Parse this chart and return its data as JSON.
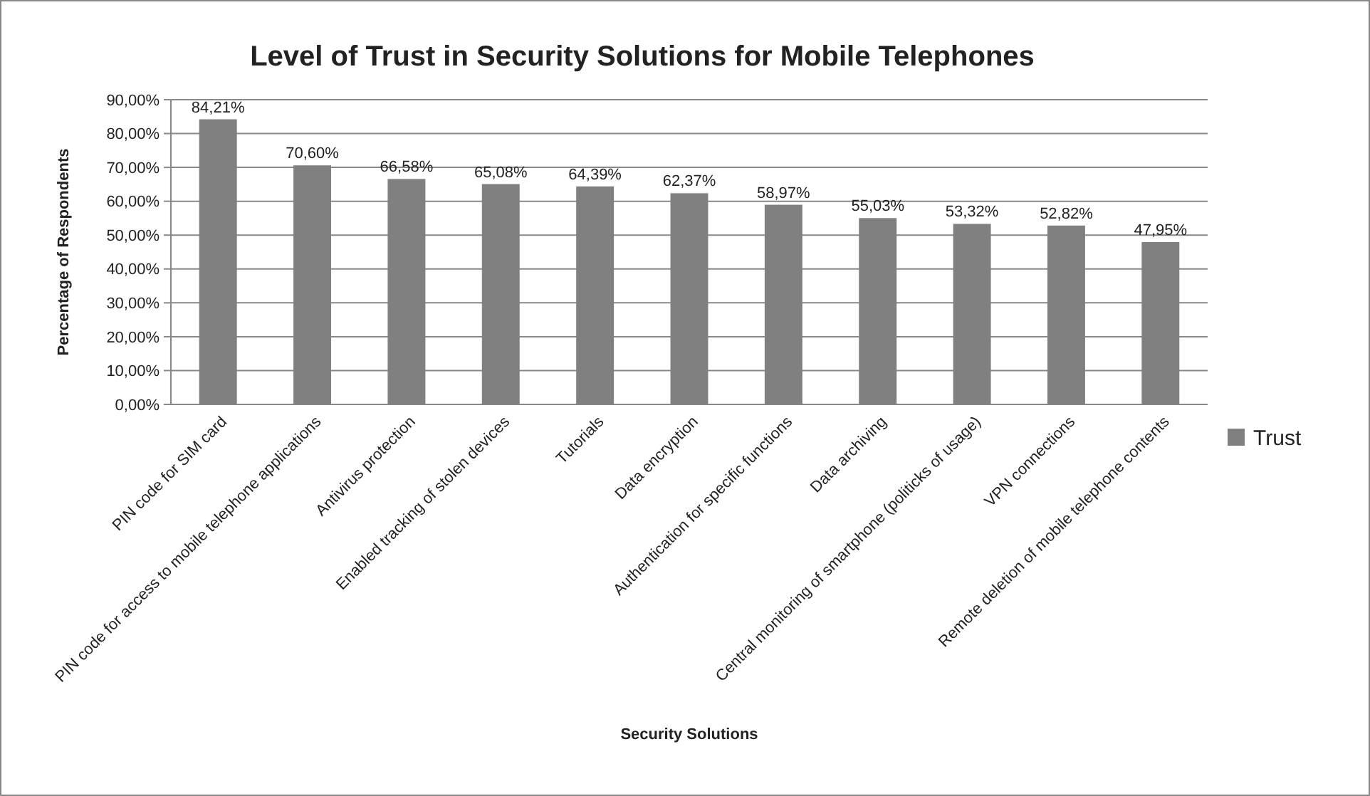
{
  "chart_data": {
    "type": "bar",
    "title": "Level of Trust in Security Solutions for Mobile Telephones",
    "xlabel": "Security Solutions",
    "ylabel": "Percentage of Respondents",
    "categories": [
      "PIN code for SIM card",
      "PIN code for access to mobile telephone applications",
      "Antivirus protection",
      "Enabled tracking of stolen devices",
      "Tutorials",
      "Data encryption",
      "Authentication for specific functions",
      "Data archiving",
      "Central monitoring of smartphone (politicks of usage)",
      "VPN connections",
      "Remote deletion of mobile telephone contents"
    ],
    "series": [
      {
        "name": "Trust",
        "color": "#808080",
        "values": [
          84.21,
          70.6,
          66.58,
          65.08,
          64.39,
          62.37,
          58.97,
          55.03,
          53.32,
          52.82,
          47.95
        ],
        "value_labels": [
          "84,21%",
          "70,60%",
          "66,58%",
          "65,08%",
          "64,39%",
          "62,37%",
          "58,97%",
          "55,03%",
          "53,32%",
          "52,82%",
          "47,95%"
        ]
      }
    ],
    "ylim": [
      0,
      90
    ],
    "yticks": [
      {
        "value": 0,
        "label": "0,00%"
      },
      {
        "value": 10,
        "label": "10,00%"
      },
      {
        "value": 20,
        "label": "20,00%"
      },
      {
        "value": 30,
        "label": "30,00%"
      },
      {
        "value": 40,
        "label": "40,00%"
      },
      {
        "value": 50,
        "label": "50,00%"
      },
      {
        "value": 60,
        "label": "60,00%"
      },
      {
        "value": 70,
        "label": "70,00%"
      },
      {
        "value": 80,
        "label": "80,00%"
      },
      {
        "value": 90,
        "label": "90,00%"
      }
    ],
    "grid": "y",
    "legend": "right"
  }
}
